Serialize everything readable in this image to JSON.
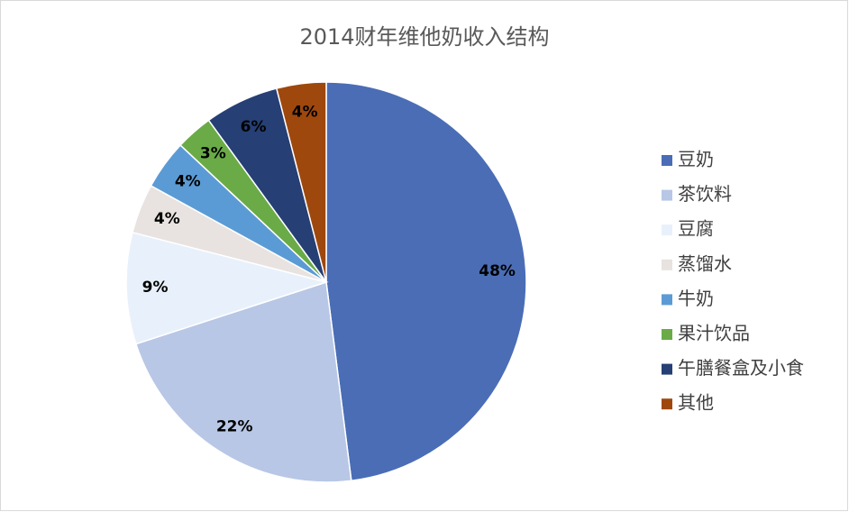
{
  "chart_data": {
    "type": "pie",
    "title": "2014财年维他奶收入结构",
    "categories": [
      "豆奶",
      "茶饮料",
      "豆腐",
      "蒸馏水",
      "牛奶",
      "果汁饮品",
      "午膳餐盒及小食",
      "其他"
    ],
    "values": [
      48,
      22,
      9,
      4,
      4,
      3,
      6,
      4
    ],
    "value_labels": [
      "48%",
      "22%",
      "9%",
      "4%",
      "4%",
      "3%",
      "6%",
      "4%"
    ],
    "colors": [
      "#4a6db6",
      "#b8c7e5",
      "#e8f1fb",
      "#e8e3e0",
      "#5b9bd5",
      "#6aab47",
      "#263f74",
      "#9e480e"
    ],
    "legend": "right"
  }
}
